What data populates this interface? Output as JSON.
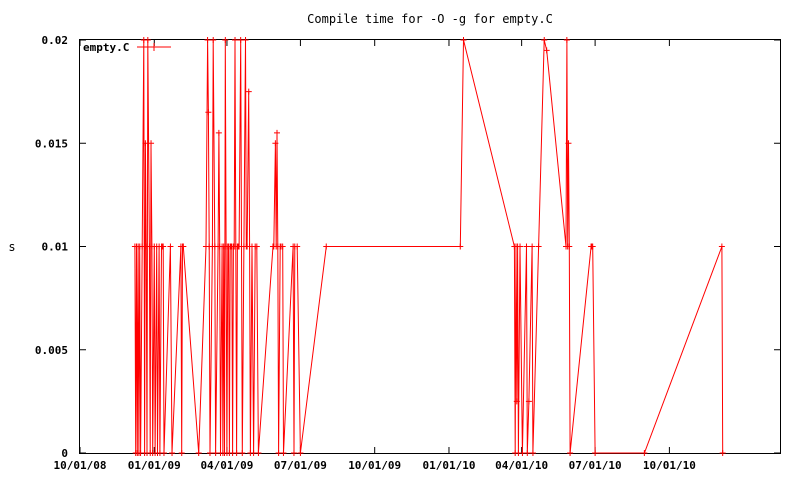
{
  "chart_data": {
    "type": "line",
    "title": "Compile time for -O -g for empty.C",
    "xlabel": "",
    "ylabel": "s",
    "ylim": [
      0,
      0.02
    ],
    "yticks": [
      "0",
      "0.005",
      "0.01",
      "0.015",
      "0.02"
    ],
    "xticks": [
      "10/01/08",
      "01/01/09",
      "04/01/09",
      "07/01/09",
      "10/01/09",
      "01/01/10",
      "04/01/10",
      "07/01/10",
      "10/01/10"
    ],
    "xlim": [
      "2008-10-01",
      "2011-02-15"
    ],
    "grid": false,
    "legend_position": "top-left",
    "colors": {
      "series": "#ff0000",
      "axes": "#000000",
      "background": "#ffffff"
    },
    "series": [
      {
        "name": "empty.C",
        "points": [
          [
            "2008-12-08",
            0.01
          ],
          [
            "2008-12-09",
            0
          ],
          [
            "2008-12-10",
            0.01
          ],
          [
            "2008-12-11",
            0
          ],
          [
            "2008-12-12",
            0.01
          ],
          [
            "2008-12-13",
            0
          ],
          [
            "2008-12-14",
            0.01
          ],
          [
            "2008-12-15",
            0
          ],
          [
            "2008-12-17",
            0.01
          ],
          [
            "2008-12-19",
            0.02
          ],
          [
            "2008-12-20",
            0
          ],
          [
            "2008-12-21",
            0.015
          ],
          [
            "2008-12-22",
            0.01
          ],
          [
            "2008-12-23",
            0
          ],
          [
            "2008-12-24",
            0.02
          ],
          [
            "2008-12-26",
            0.01
          ],
          [
            "2008-12-27",
            0
          ],
          [
            "2008-12-28",
            0.015
          ],
          [
            "2008-12-29",
            0.01
          ],
          [
            "2008-12-30",
            0
          ],
          [
            "2009-01-01",
            0.01
          ],
          [
            "2009-01-02",
            0
          ],
          [
            "2009-01-04",
            0.01
          ],
          [
            "2009-01-05",
            0
          ],
          [
            "2009-01-07",
            0.01
          ],
          [
            "2009-01-08",
            0
          ],
          [
            "2009-01-10",
            0.01
          ],
          [
            "2009-01-11",
            0.01
          ],
          [
            "2009-01-12",
            0.01
          ],
          [
            "2009-01-13",
            0
          ],
          [
            "2009-01-21",
            0.01
          ],
          [
            "2009-01-23",
            0
          ],
          [
            "2009-02-03",
            0.01
          ],
          [
            "2009-02-04",
            0
          ],
          [
            "2009-02-05",
            0.01
          ],
          [
            "2009-02-06",
            0.01
          ],
          [
            "2009-02-25",
            0
          ],
          [
            "2009-03-06",
            0.01
          ],
          [
            "2009-03-08",
            0.02
          ],
          [
            "2009-03-09",
            0.0165
          ],
          [
            "2009-03-10",
            0.01
          ],
          [
            "2009-03-11",
            0
          ],
          [
            "2009-03-14",
            0.01
          ],
          [
            "2009-03-15",
            0.02
          ],
          [
            "2009-03-17",
            0.01
          ],
          [
            "2009-03-18",
            0
          ],
          [
            "2009-03-21",
            0.01
          ],
          [
            "2009-03-22",
            0.0155
          ],
          [
            "2009-03-23",
            0.01
          ],
          [
            "2009-03-24",
            0
          ],
          [
            "2009-03-26",
            0.01
          ],
          [
            "2009-03-27",
            0
          ],
          [
            "2009-03-28",
            0.01
          ],
          [
            "2009-03-29",
            0
          ],
          [
            "2009-03-30",
            0.02
          ],
          [
            "2009-03-31",
            0.01
          ],
          [
            "2009-04-01",
            0
          ],
          [
            "2009-04-02",
            0.01
          ],
          [
            "2009-04-03",
            0.01
          ],
          [
            "2009-04-04",
            0
          ],
          [
            "2009-04-05",
            0.01
          ],
          [
            "2009-04-06",
            0.01
          ],
          [
            "2009-04-07",
            0.01
          ],
          [
            "2009-04-08",
            0
          ],
          [
            "2009-04-09",
            0.01
          ],
          [
            "2009-04-10",
            0.01
          ],
          [
            "2009-04-11",
            0.02
          ],
          [
            "2009-04-12",
            0.01
          ],
          [
            "2009-04-13",
            0
          ],
          [
            "2009-04-14",
            0.01
          ],
          [
            "2009-04-15",
            0.01
          ],
          [
            "2009-04-16",
            0.01
          ],
          [
            "2009-04-18",
            0.02
          ],
          [
            "2009-04-19",
            0.01
          ],
          [
            "2009-04-20",
            0
          ],
          [
            "2009-04-22",
            0.01
          ],
          [
            "2009-04-24",
            0.02
          ],
          [
            "2009-04-25",
            0.01
          ],
          [
            "2009-04-26",
            0.01
          ],
          [
            "2009-04-28",
            0.0175
          ],
          [
            "2009-04-29",
            0.01
          ],
          [
            "2009-04-30",
            0
          ],
          [
            "2009-05-02",
            0.01
          ],
          [
            "2009-05-04",
            0
          ],
          [
            "2009-05-06",
            0.01
          ],
          [
            "2009-05-08",
            0.01
          ],
          [
            "2009-05-10",
            0
          ],
          [
            "2009-05-28",
            0.01
          ],
          [
            "2009-05-29",
            0.01
          ],
          [
            "2009-05-31",
            0.015
          ],
          [
            "2009-06-01",
            0.01
          ],
          [
            "2009-06-02",
            0.0155
          ],
          [
            "2009-06-03",
            0.01
          ],
          [
            "2009-06-04",
            0
          ],
          [
            "2009-06-06",
            0.01
          ],
          [
            "2009-06-07",
            0.01
          ],
          [
            "2009-06-09",
            0.01
          ],
          [
            "2009-06-10",
            0
          ],
          [
            "2009-06-22",
            0.01
          ],
          [
            "2009-06-23",
            0
          ],
          [
            "2009-06-24",
            0.01
          ],
          [
            "2009-06-27",
            0.01
          ],
          [
            "2009-07-01",
            0
          ],
          [
            "2009-08-02",
            0.01
          ],
          [
            "2010-01-15",
            0.01
          ],
          [
            "2010-01-19",
            0.02
          ],
          [
            "2010-03-23",
            0.01
          ],
          [
            "2010-03-24",
            0
          ],
          [
            "2010-03-25",
            0.01
          ],
          [
            "2010-03-26",
            0.0025
          ],
          [
            "2010-03-27",
            0.01
          ],
          [
            "2010-03-28",
            0
          ],
          [
            "2010-03-30",
            0.01
          ],
          [
            "2010-04-02",
            0
          ],
          [
            "2010-04-07",
            0.01
          ],
          [
            "2010-04-08",
            0
          ],
          [
            "2010-04-10",
            0.0025
          ],
          [
            "2010-04-14",
            0.01
          ],
          [
            "2010-04-15",
            0
          ],
          [
            "2010-04-22",
            0.01
          ],
          [
            "2010-04-29",
            0.02
          ],
          [
            "2010-05-02",
            0.0195
          ],
          [
            "2010-05-26",
            0.01
          ],
          [
            "2010-05-27",
            0.02
          ],
          [
            "2010-05-28",
            0.01
          ],
          [
            "2010-05-29",
            0.015
          ],
          [
            "2010-05-30",
            0.01
          ],
          [
            "2010-05-31",
            0
          ],
          [
            "2010-06-26",
            0.01
          ],
          [
            "2010-06-27",
            0.01
          ],
          [
            "2010-06-28",
            0.01
          ],
          [
            "2010-07-01",
            0
          ],
          [
            "2010-08-31",
            0
          ],
          [
            "2010-12-05",
            0.01
          ],
          [
            "2010-12-06",
            0
          ]
        ]
      }
    ]
  }
}
